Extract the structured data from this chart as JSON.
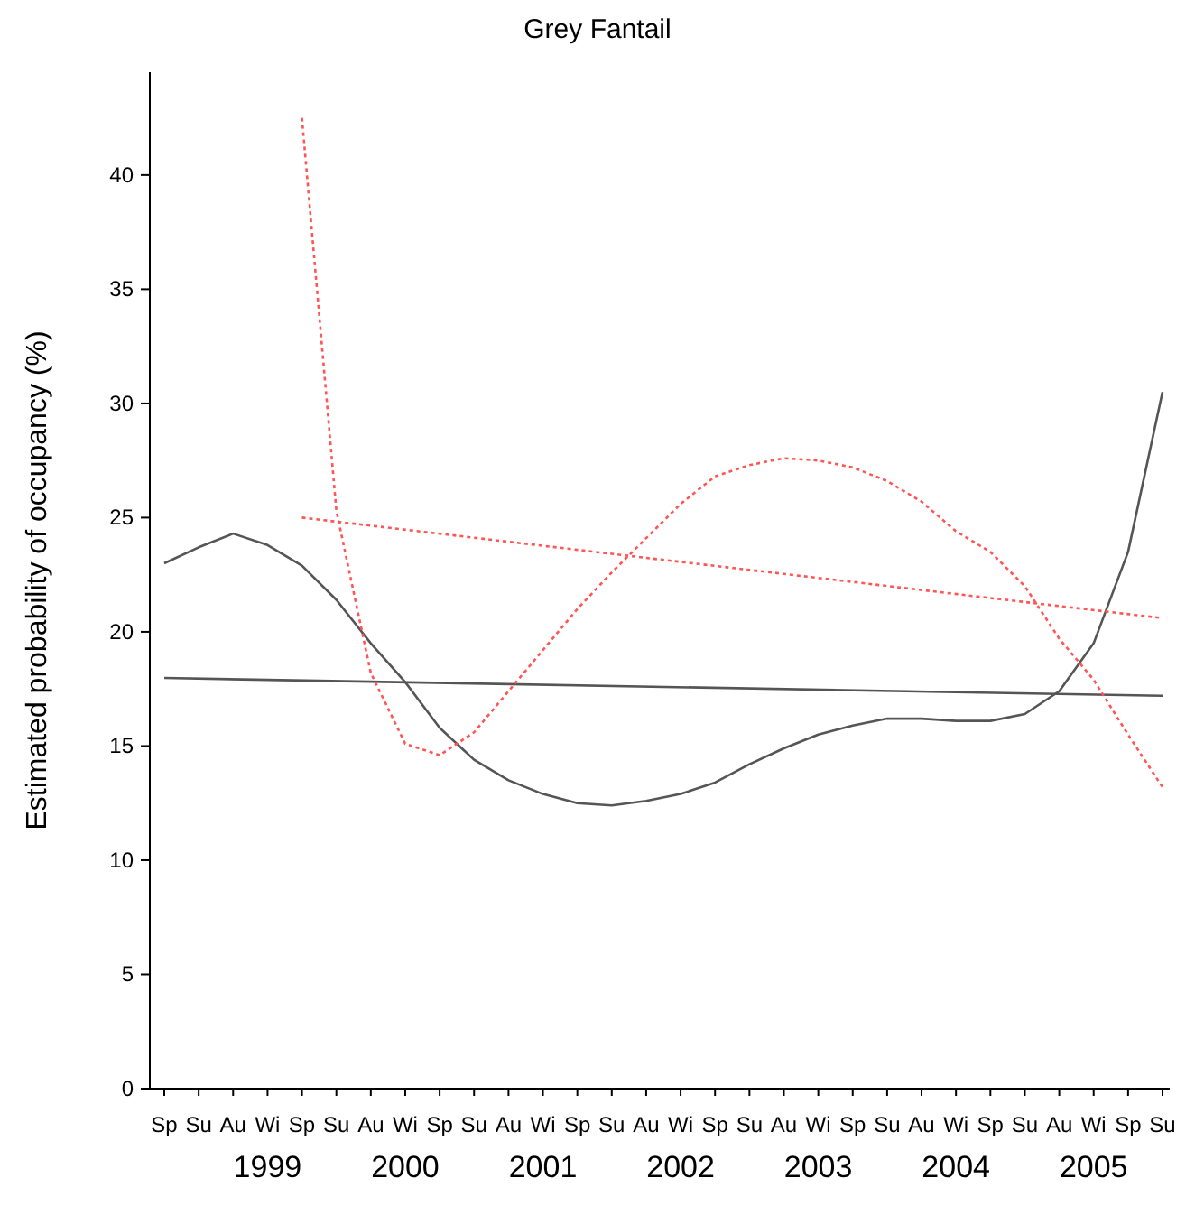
{
  "chart_data": {
    "type": "line",
    "title": "Grey Fantail",
    "ylabel": "Estimated probability of occupancy (%)",
    "categories": [
      "Sp",
      "Su",
      "Au",
      "Wi",
      "Sp",
      "Su",
      "Au",
      "Wi",
      "Sp",
      "Su",
      "Au",
      "Wi",
      "Sp",
      "Su",
      "Au",
      "Wi",
      "Sp",
      "Su",
      "Au",
      "Wi",
      "Sp",
      "Su",
      "Au",
      "Wi",
      "Sp",
      "Su",
      "Au",
      "Wi",
      "Sp",
      "Su"
    ],
    "ylim": [
      0,
      44.5
    ],
    "yticks": [
      0,
      5,
      10,
      15,
      20,
      25,
      30,
      35,
      40
    ],
    "annotations": [
      "1999",
      "2000",
      "2001",
      "2002",
      "2003",
      "2004",
      "2005"
    ],
    "legend": false,
    "grid": false,
    "marker": "none",
    "series": [
      {
        "color": "#555555",
        "line_style": "solid",
        "values": [
          23.0,
          23.7,
          24.3,
          23.8,
          22.9,
          21.4,
          19.5,
          17.8,
          15.8,
          14.4,
          13.5,
          12.9,
          12.5,
          12.4,
          12.6,
          12.9,
          13.4,
          14.2,
          14.9,
          15.5,
          15.9,
          16.2,
          16.2,
          16.1,
          16.1,
          16.4,
          17.4,
          19.5,
          23.5,
          30.5
        ]
      },
      {
        "color": "#555555",
        "line_style": "solid",
        "values": [
          17.98,
          null,
          null,
          null,
          null,
          null,
          null,
          null,
          null,
          null,
          null,
          null,
          null,
          null,
          null,
          null,
          null,
          null,
          null,
          null,
          null,
          null,
          null,
          null,
          null,
          null,
          null,
          null,
          null,
          17.2
        ]
      },
      {
        "color": "#ff5555",
        "line_style": "dotted",
        "values": [
          null,
          null,
          null,
          null,
          25.0,
          null,
          null,
          null,
          null,
          null,
          null,
          null,
          null,
          null,
          null,
          null,
          null,
          null,
          null,
          null,
          null,
          null,
          null,
          null,
          null,
          null,
          null,
          null,
          null,
          20.6
        ]
      },
      {
        "color": "#ff5555",
        "line_style": "dotted",
        "values": [
          null,
          null,
          null,
          null,
          42.5,
          25.3,
          18.2,
          15.1,
          14.6,
          15.6,
          17.4,
          19.2,
          21.0,
          22.6,
          24.1,
          25.6,
          26.8,
          27.3,
          27.6,
          27.5,
          27.2,
          26.6,
          25.7,
          24.4,
          23.5,
          22.0,
          19.7,
          17.9,
          15.5,
          13.2
        ]
      }
    ]
  }
}
